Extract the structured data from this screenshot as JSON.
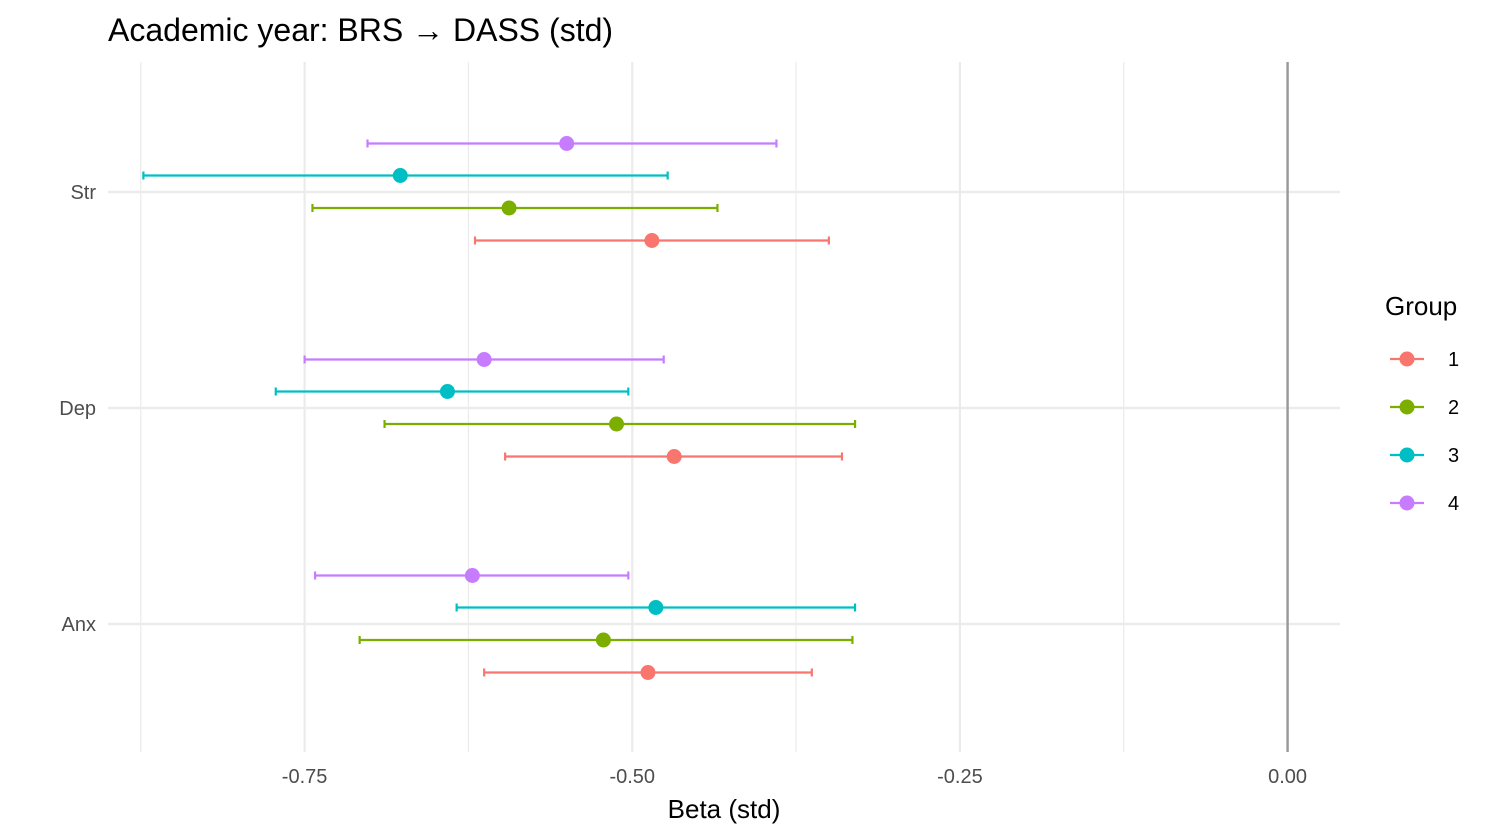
{
  "chart_data": {
    "type": "scatter",
    "subtype": "forest-plot",
    "title": "Academic year: BRS → DASS (std)",
    "xlabel": "Beta (std)",
    "ylabel": "",
    "xlim": [
      -0.9,
      0.04
    ],
    "x_ticks": [
      -0.75,
      -0.5,
      -0.25,
      0.0
    ],
    "x_tick_labels": [
      "-0.75",
      "-0.50",
      "-0.25",
      "0.00"
    ],
    "reference_line": 0,
    "categories": [
      "Str",
      "Dep",
      "Anx"
    ],
    "grid": true,
    "legend": {
      "title": "Group",
      "position": "right"
    },
    "series": [
      {
        "name": "1",
        "color": "#F8766D",
        "points": [
          {
            "category": "Str",
            "estimate": -0.485,
            "lower": -0.62,
            "upper": -0.35
          },
          {
            "category": "Dep",
            "estimate": -0.468,
            "lower": -0.597,
            "upper": -0.34
          },
          {
            "category": "Anx",
            "estimate": -0.488,
            "lower": -0.613,
            "upper": -0.363
          }
        ]
      },
      {
        "name": "2",
        "color": "#7CAE00",
        "points": [
          {
            "category": "Str",
            "estimate": -0.594,
            "lower": -0.744,
            "upper": -0.435
          },
          {
            "category": "Dep",
            "estimate": -0.512,
            "lower": -0.689,
            "upper": -0.33
          },
          {
            "category": "Anx",
            "estimate": -0.522,
            "lower": -0.708,
            "upper": -0.332
          }
        ]
      },
      {
        "name": "3",
        "color": "#00BFC4",
        "points": [
          {
            "category": "Str",
            "estimate": -0.677,
            "lower": -0.873,
            "upper": -0.473
          },
          {
            "category": "Dep",
            "estimate": -0.641,
            "lower": -0.772,
            "upper": -0.503
          },
          {
            "category": "Anx",
            "estimate": -0.482,
            "lower": -0.634,
            "upper": -0.33
          }
        ]
      },
      {
        "name": "4",
        "color": "#C77CFF",
        "points": [
          {
            "category": "Str",
            "estimate": -0.55,
            "lower": -0.702,
            "upper": -0.39
          },
          {
            "category": "Dep",
            "estimate": -0.613,
            "lower": -0.75,
            "upper": -0.476
          },
          {
            "category": "Anx",
            "estimate": -0.622,
            "lower": -0.742,
            "upper": -0.503
          }
        ]
      }
    ]
  }
}
